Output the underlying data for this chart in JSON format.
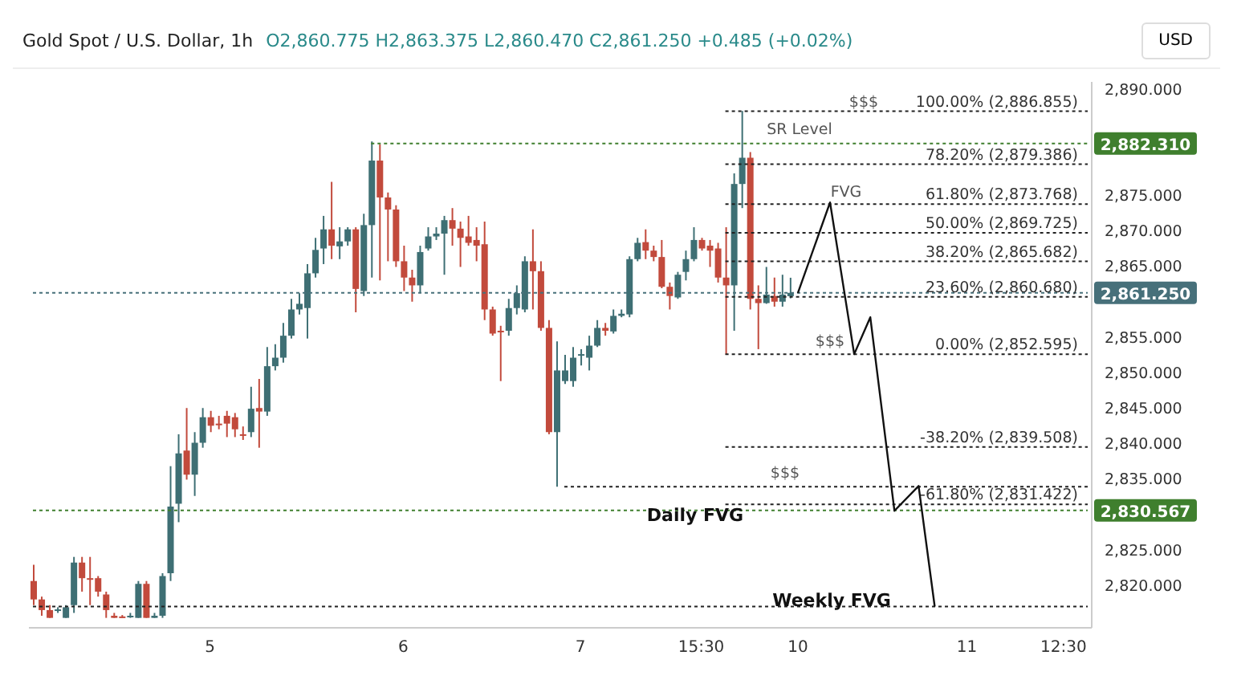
{
  "chart_data": {
    "type": "candlestick",
    "title": "Gold Spot / U.S. Dollar, 1h",
    "subtitle": "O2,860.775 H2,863.375 L2,860.470 C2,861.250 +0.485 (+0.02%)",
    "categories": [
      null,
      null,
      null,
      null,
      null,
      null,
      null,
      null,
      null,
      null,
      null,
      null,
      null,
      null,
      null,
      null,
      null,
      null,
      null,
      null,
      null,
      null,
      "5",
      null,
      null,
      null,
      null,
      null,
      null,
      null,
      null,
      null,
      null,
      null,
      null,
      null,
      null,
      null,
      null,
      null,
      null,
      null,
      null,
      null,
      null,
      null,
      "6",
      null,
      null,
      null,
      null,
      null,
      null,
      null,
      null,
      null,
      null,
      null,
      null,
      null,
      null,
      null,
      null,
      null,
      null,
      null,
      null,
      null,
      "7",
      null,
      null,
      null,
      null,
      null,
      null,
      null,
      null,
      null,
      null,
      null,
      null,
      null,
      null,
      "15:30",
      null,
      null,
      null,
      null,
      null,
      null,
      null,
      null,
      null,
      null,
      null,
      "10",
      null,
      null,
      null,
      null,
      null,
      null,
      null,
      null,
      null,
      null,
      null,
      null,
      null,
      null,
      null,
      null,
      null,
      null,
      null,
      null,
      "11",
      null,
      null,
      null,
      null,
      null,
      null,
      null,
      null,
      null,
      null,
      null,
      "12:30",
      null,
      null,
      null
    ],
    "ohlc": [
      [
        2820.6,
        2822.9,
        2817.2,
        2818.0
      ],
      [
        2818.0,
        2818.4,
        2815.7,
        2816.5
      ],
      [
        2816.5,
        2817.2,
        2815.4,
        2815.4
      ],
      [
        2816.5,
        2816.9,
        2816.1,
        2816.6
      ],
      [
        2815.4,
        2817.2,
        2815.4,
        2816.9
      ],
      [
        2817.2,
        2824.0,
        2816.1,
        2823.2
      ],
      [
        2823.2,
        2824.0,
        2819.1,
        2821.0
      ],
      [
        2821.0,
        2824.0,
        2817.2,
        2820.9
      ],
      [
        2821.0,
        2821.3,
        2818.4,
        2819.1
      ],
      [
        2818.7,
        2819.1,
        2815.4,
        2816.5
      ],
      [
        2815.7,
        2816.1,
        2815.4,
        2815.4
      ],
      [
        2815.6,
        2815.8,
        2815.4,
        2815.5
      ],
      [
        2815.5,
        2816.1,
        2815.4,
        2815.7
      ],
      [
        2815.4,
        2820.6,
        2815.4,
        2820.2
      ],
      [
        2820.2,
        2820.6,
        2815.4,
        2815.4
      ],
      [
        2815.4,
        2816.1,
        2815.4,
        2815.7
      ],
      [
        2815.7,
        2821.7,
        2815.4,
        2821.3
      ],
      [
        2821.7,
        2836.8,
        2820.6,
        2831.1
      ],
      [
        2831.5,
        2841.3,
        2828.9,
        2838.6
      ],
      [
        2839.0,
        2845.0,
        2834.9,
        2835.6
      ],
      [
        2835.6,
        2841.6,
        2832.6,
        2840.1
      ],
      [
        2840.1,
        2845.0,
        2839.4,
        2843.7
      ],
      [
        2843.7,
        2844.6,
        2841.6,
        2842.5
      ],
      [
        2842.8,
        2843.9,
        2842.0,
        2842.7
      ],
      [
        2843.9,
        2844.6,
        2840.9,
        2842.8
      ],
      [
        2843.7,
        2844.3,
        2840.9,
        2842.0
      ],
      [
        2841.3,
        2842.4,
        2840.5,
        2841.2
      ],
      [
        2841.6,
        2848.0,
        2840.9,
        2844.9
      ],
      [
        2845.0,
        2849.1,
        2839.4,
        2844.5
      ],
      [
        2844.5,
        2853.6,
        2843.9,
        2850.9
      ],
      [
        2850.9,
        2854.0,
        2850.3,
        2852.1
      ],
      [
        2852.1,
        2857.0,
        2851.4,
        2855.2
      ],
      [
        2855.2,
        2860.4,
        2854.8,
        2858.9
      ],
      [
        2858.9,
        2861.2,
        2858.2,
        2859.7
      ],
      [
        2859.1,
        2865.3,
        2854.8,
        2864.0
      ],
      [
        2864.0,
        2869.0,
        2863.4,
        2867.3
      ],
      [
        2867.5,
        2872.1,
        2865.3,
        2870.2
      ],
      [
        2870.2,
        2876.9,
        2866.0,
        2867.9
      ],
      [
        2867.8,
        2870.5,
        2866.0,
        2868.5
      ],
      [
        2868.5,
        2870.5,
        2867.9,
        2870.2
      ],
      [
        2870.2,
        2870.5,
        2858.5,
        2861.8
      ],
      [
        2861.5,
        2872.4,
        2860.8,
        2870.8
      ],
      [
        2870.8,
        2882.6,
        2863.4,
        2879.9
      ],
      [
        2879.9,
        2882.2,
        2863.0,
        2874.7
      ],
      [
        2874.7,
        2875.4,
        2865.7,
        2873.0
      ],
      [
        2873.0,
        2873.6,
        2864.9,
        2865.7
      ],
      [
        2865.7,
        2867.9,
        2861.5,
        2863.4
      ],
      [
        2863.4,
        2864.5,
        2860.0,
        2862.3
      ],
      [
        2862.3,
        2867.9,
        2861.2,
        2867.0
      ],
      [
        2867.5,
        2870.5,
        2867.2,
        2869.2
      ],
      [
        2869.2,
        2870.5,
        2868.7,
        2869.6
      ],
      [
        2869.6,
        2872.1,
        2863.8,
        2871.5
      ],
      [
        2871.5,
        2873.2,
        2867.9,
        2870.3
      ],
      [
        2870.3,
        2871.3,
        2864.9,
        2869.0
      ],
      [
        2869.2,
        2872.1,
        2867.9,
        2868.3
      ],
      [
        2868.7,
        2870.5,
        2865.7,
        2867.9
      ],
      [
        2868.1,
        2871.3,
        2857.4,
        2858.9
      ],
      [
        2858.9,
        2859.3,
        2855.2,
        2855.5
      ],
      [
        2855.9,
        2856.6,
        2848.8,
        2855.8
      ],
      [
        2855.9,
        2860.4,
        2855.2,
        2859.1
      ],
      [
        2859.1,
        2862.3,
        2858.2,
        2861.2
      ],
      [
        2858.9,
        2866.4,
        2858.5,
        2865.7
      ],
      [
        2865.7,
        2870.2,
        2858.9,
        2864.3
      ],
      [
        2864.3,
        2865.7,
        2855.9,
        2856.3
      ],
      [
        2856.3,
        2857.4,
        2841.3,
        2841.6
      ],
      [
        2841.6,
        2854.4,
        2833.9,
        2850.3
      ],
      [
        2848.8,
        2852.5,
        2848.4,
        2850.3
      ],
      [
        2848.8,
        2853.6,
        2848.0,
        2852.1
      ],
      [
        2852.5,
        2853.3,
        2851.0,
        2852.6
      ],
      [
        2852.1,
        2855.2,
        2850.3,
        2853.8
      ],
      [
        2853.8,
        2857.4,
        2853.6,
        2856.3
      ],
      [
        2856.3,
        2857.0,
        2855.2,
        2855.9
      ],
      [
        2855.8,
        2858.9,
        2855.5,
        2858.0
      ],
      [
        2858.0,
        2858.9,
        2857.8,
        2858.3
      ],
      [
        2858.2,
        2866.4,
        2857.8,
        2866.0
      ],
      [
        2866.0,
        2869.0,
        2865.7,
        2868.3
      ],
      [
        2868.4,
        2870.2,
        2866.0,
        2867.2
      ],
      [
        2867.2,
        2867.9,
        2865.7,
        2866.3
      ],
      [
        2866.3,
        2868.7,
        2861.9,
        2862.1
      ],
      [
        2862.1,
        2862.7,
        2858.9,
        2860.8
      ],
      [
        2860.6,
        2864.2,
        2860.4,
        2863.8
      ],
      [
        2864.2,
        2867.2,
        2863.0,
        2866.0
      ],
      [
        2866.0,
        2870.5,
        2865.7,
        2868.7
      ],
      [
        2868.7,
        2869.0,
        2867.2,
        2867.5
      ],
      [
        2867.9,
        2868.7,
        2864.9,
        2867.2
      ],
      [
        2867.5,
        2868.3,
        2862.7,
        2863.4
      ],
      [
        2863.4,
        2870.5,
        2852.5,
        2862.3
      ],
      [
        2862.3,
        2878.1,
        2855.9,
        2876.6
      ],
      [
        2876.6,
        2886.9,
        2873.2,
        2880.3
      ],
      [
        2880.3,
        2881.1,
        2858.9,
        2860.4
      ],
      [
        2860.4,
        2862.3,
        2853.3,
        2859.8
      ],
      [
        2859.8,
        2864.9,
        2859.7,
        2861.0
      ],
      [
        2860.8,
        2863.4,
        2859.3,
        2860.0
      ],
      [
        2860.0,
        2863.8,
        2859.3,
        2861.0
      ],
      [
        2860.775,
        2863.375,
        2860.47,
        2861.25
      ],
      null,
      null,
      null,
      null,
      null,
      null,
      null,
      null,
      null,
      null,
      null,
      null,
      null,
      null,
      null,
      null,
      null,
      null,
      null,
      null,
      null,
      null,
      null,
      null,
      null,
      null,
      null,
      null,
      null,
      null,
      null,
      null,
      null,
      null,
      null,
      null,
      null
    ],
    "colors": [
      "#c24a3c",
      "#c24a3c",
      "#c24a3c",
      "#3e6f74",
      "#3e6f74",
      "#3e6f74",
      "#c24a3c",
      "#c24a3c",
      "#c24a3c",
      "#c24a3c",
      "#c24a3c",
      "#c24a3c",
      "#3e6f74",
      "#3e6f74",
      "#c24a3c",
      "#3e6f74",
      "#3e6f74",
      "#3e6f74",
      "#3e6f74",
      "#c24a3c",
      "#3e6f74",
      "#3e6f74",
      "#c24a3c",
      "#c24a3c",
      "#c24a3c",
      "#c24a3c",
      "#c24a3c",
      "#3e6f74",
      "#c24a3c",
      "#3e6f74",
      "#3e6f74",
      "#3e6f74",
      "#3e6f74",
      "#3e6f74",
      "#3e6f74",
      "#3e6f74",
      "#3e6f74",
      "#c24a3c",
      "#3e6f74",
      "#3e6f74",
      "#c24a3c",
      "#3e6f74",
      "#3e6f74",
      "#c24a3c",
      "#c24a3c",
      "#c24a3c",
      "#c24a3c",
      "#c24a3c",
      "#3e6f74",
      "#3e6f74",
      "#3e6f74",
      "#3e6f74",
      "#c24a3c",
      "#c24a3c",
      "#c24a3c",
      "#c24a3c",
      "#c24a3c",
      "#c24a3c",
      "#c24a3c",
      "#3e6f74",
      "#3e6f74",
      "#3e6f74",
      "#c24a3c",
      "#c24a3c",
      "#c24a3c",
      "#3e6f74",
      "#3e6f74",
      "#3e6f74",
      "#3e6f74",
      "#3e6f74",
      "#3e6f74",
      "#c24a3c",
      "#3e6f74",
      "#3e6f74",
      "#3e6f74",
      "#3e6f74",
      "#c24a3c",
      "#c24a3c",
      "#c24a3c",
      "#c24a3c",
      "#3e6f74",
      "#3e6f74",
      "#3e6f74",
      "#c24a3c",
      "#c24a3c",
      "#c24a3c",
      "#c24a3c",
      "#3e6f74",
      "#3e6f74",
      "#c24a3c",
      "#c24a3c",
      "#3e6f74",
      "#c24a3c",
      "#3e6f74",
      "#3e6f74",
      null,
      null,
      null,
      null,
      null,
      null,
      null,
      null,
      null,
      null,
      null,
      null,
      null,
      null,
      null,
      null,
      null,
      null,
      null,
      null,
      null,
      null,
      null,
      null,
      null,
      null,
      null,
      null,
      null,
      null,
      null,
      null,
      null,
      null,
      null,
      null,
      null
    ],
    "series": [
      {
        "type": "line",
        "color": "#111111",
        "values": [
          null,
          null,
          null,
          null,
          null,
          null,
          null,
          null,
          null,
          null,
          null,
          null,
          null,
          null,
          null,
          null,
          null,
          null,
          null,
          null,
          null,
          null,
          null,
          null,
          null,
          null,
          null,
          null,
          null,
          null,
          null,
          null,
          null,
          null,
          null,
          null,
          null,
          null,
          null,
          null,
          null,
          null,
          null,
          null,
          null,
          null,
          null,
          null,
          null,
          null,
          null,
          null,
          null,
          null,
          null,
          null,
          null,
          null,
          null,
          null,
          null,
          null,
          null,
          null,
          null,
          null,
          null,
          null,
          null,
          null,
          null,
          null,
          null,
          null,
          null,
          null,
          null,
          null,
          null,
          null,
          null,
          null,
          null,
          null,
          null,
          null,
          null,
          null,
          null,
          null,
          null,
          null,
          null,
          null,
          null,
          2861.2,
          null,
          null,
          null,
          2874.0,
          null,
          null,
          2852.6,
          null,
          2857.8,
          null,
          null,
          2830.5,
          null,
          null,
          2834.0,
          null,
          2817.0,
          null,
          null,
          null,
          null,
          null,
          null,
          null,
          null,
          null,
          null,
          null,
          null,
          null,
          null,
          null,
          null,
          null,
          null,
          null
        ]
      }
    ],
    "marker": "none",
    "ylim": [
      2814,
      2891
    ],
    "yticks": [
      {
        "value": 2820,
        "label": "2,820.000"
      },
      {
        "value": 2825,
        "label": "2,825.000"
      },
      {
        "value": 2835,
        "label": "2,835.000"
      },
      {
        "value": 2840,
        "label": "2,840.000"
      },
      {
        "value": 2845,
        "label": "2,845.000"
      },
      {
        "value": 2850,
        "label": "2,850.000"
      },
      {
        "value": 2855,
        "label": "2,855.000"
      },
      {
        "value": 2865,
        "label": "2,865.000"
      },
      {
        "value": 2870,
        "label": "2,870.000"
      },
      {
        "value": 2875,
        "label": "2,875.000"
      },
      {
        "value": 2890,
        "label": "2,890.000"
      }
    ],
    "ref_lines": [
      {
        "axis": "y",
        "value": 2886.855,
        "label": "100.00% (2,886.855)",
        "line_style": "dotted"
      },
      {
        "axis": "y",
        "value": 2882.31,
        "label": "2,882.310",
        "color": "#3f7f2e",
        "line_style": "dotted"
      },
      {
        "axis": "y",
        "value": 2879.386,
        "label": "78.20% (2,879.386)",
        "line_style": "dotted"
      },
      {
        "axis": "y",
        "value": 2873.768,
        "label": "61.80% (2,873.768)",
        "line_style": "dotted"
      },
      {
        "axis": "y",
        "value": 2869.725,
        "label": "50.00% (2,869.725)",
        "line_style": "dotted"
      },
      {
        "axis": "y",
        "value": 2865.682,
        "label": "38.20% (2,865.682)",
        "line_style": "dotted"
      },
      {
        "axis": "y",
        "value": 2861.25,
        "label": "2,861.250",
        "color": "#47707a",
        "line_style": "dotted"
      },
      {
        "axis": "y",
        "value": 2860.68,
        "label": "23.60% (2,860.680)",
        "line_style": "dotted"
      },
      {
        "axis": "y",
        "value": 2852.595,
        "label": "0.00% (2,852.595)",
        "line_style": "dotted"
      },
      {
        "axis": "y",
        "value": 2839.508,
        "label": "-38.20% (2,839.508)",
        "line_style": "dotted"
      },
      {
        "axis": "y",
        "value": 2833.9,
        "line_style": "dotted"
      },
      {
        "axis": "y",
        "value": 2831.422,
        "label": "-61.80% (2,831.422)",
        "line_style": "dotted"
      },
      {
        "axis": "y",
        "value": 2830.567,
        "label": "2,830.567",
        "color": "#3f7f2e",
        "line_style": "dotted"
      },
      {
        "axis": "y",
        "value": 2817.0,
        "line_style": "dotted"
      }
    ],
    "annotations": [
      "SR Level",
      "$$$",
      "FVG",
      "$$$",
      "$$$",
      "Daily FVG",
      "Weekly FVG",
      "USD"
    ]
  }
}
